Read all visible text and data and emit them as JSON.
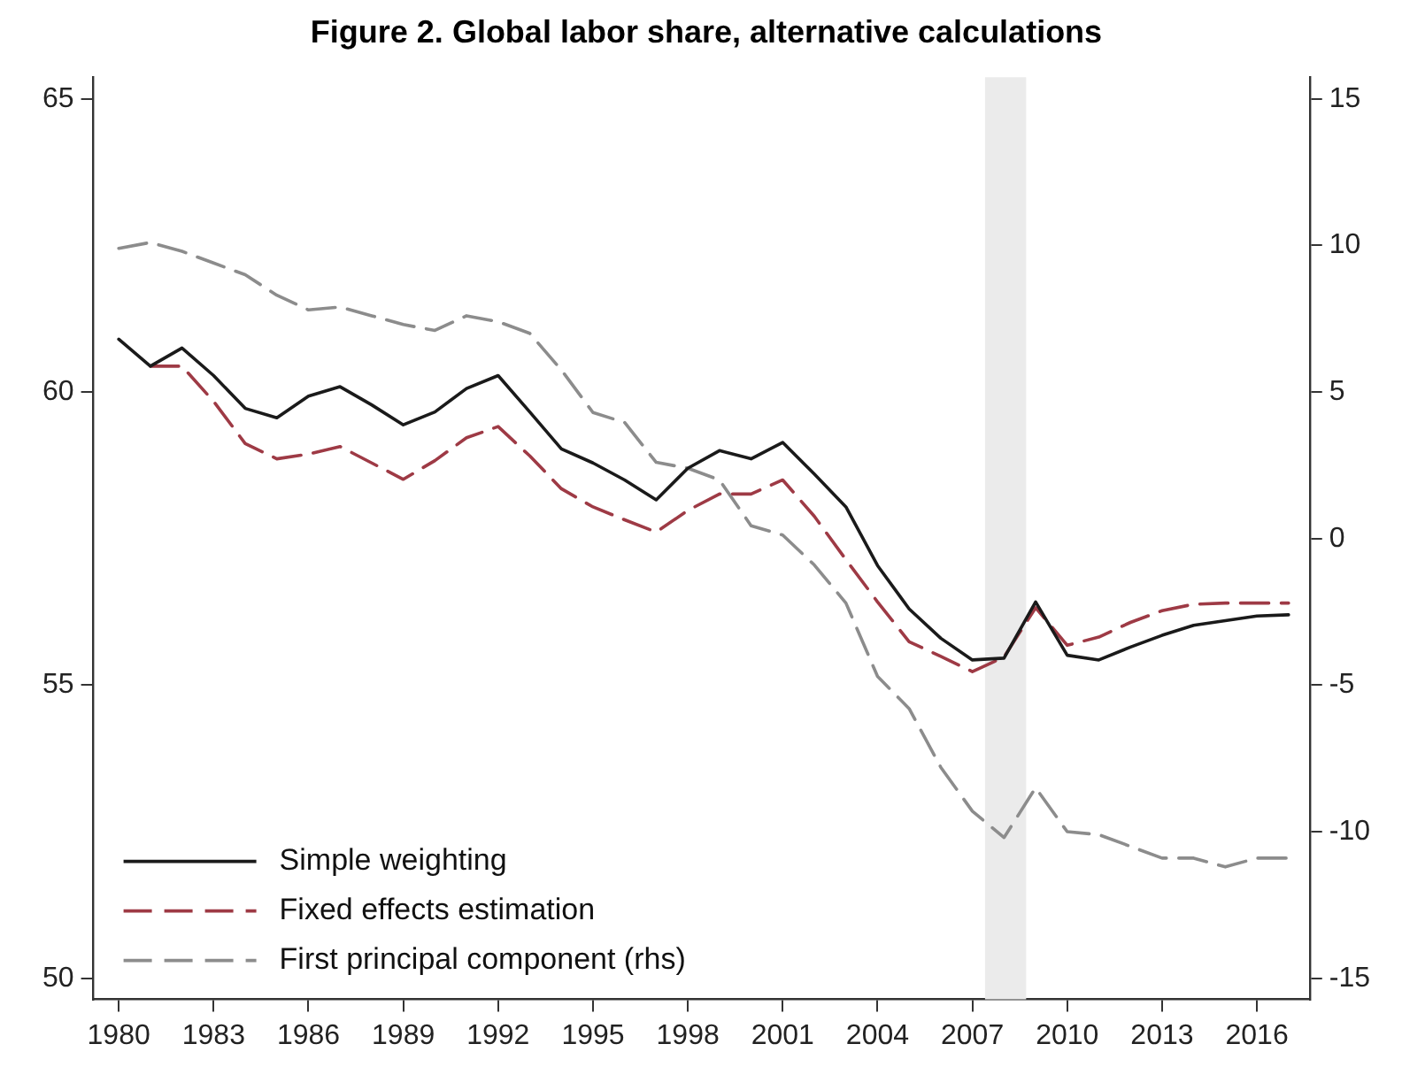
{
  "chart_data": {
    "type": "line",
    "title": "Figure 2. Global labor share, alternative calculations",
    "x": [
      1980,
      1981,
      1982,
      1983,
      1984,
      1985,
      1986,
      1987,
      1988,
      1989,
      1990,
      1991,
      1992,
      1993,
      1994,
      1995,
      1996,
      1997,
      1998,
      1999,
      2000,
      2001,
      2002,
      2003,
      2004,
      2005,
      2006,
      2007,
      2008,
      2009,
      2010,
      2011,
      2012,
      2013,
      2014,
      2015,
      2016,
      2017
    ],
    "series": [
      {
        "name": "Simple weighting",
        "color": "#1a1a1a",
        "line_style": "solid",
        "values": [
          60.9,
          60.44,
          60.75,
          60.28,
          59.72,
          59.56,
          59.93,
          60.09,
          59.78,
          59.44,
          59.66,
          60.06,
          60.28,
          59.66,
          59.03,
          58.79,
          58.5,
          58.16,
          58.7,
          59.0,
          58.86,
          59.14,
          58.6,
          58.04,
          57.04,
          56.3,
          55.8,
          55.43,
          55.46,
          56.42,
          55.51,
          55.43,
          55.65,
          55.85,
          56.02,
          56.1,
          56.18,
          56.2
        ]
      },
      {
        "name": "Fixed effects estimation",
        "color": "#9e3a45",
        "line_style": "dashed",
        "values": [
          null,
          60.44,
          60.44,
          59.84,
          59.12,
          58.86,
          58.94,
          59.07,
          58.79,
          58.51,
          58.83,
          59.22,
          59.41,
          58.91,
          58.35,
          58.04,
          57.82,
          57.61,
          57.98,
          58.26,
          58.26,
          58.5,
          57.88,
          57.14,
          56.42,
          55.74,
          55.49,
          55.23,
          55.48,
          56.32,
          55.68,
          55.82,
          56.07,
          56.27,
          56.38,
          56.4,
          56.4,
          56.4
        ]
      },
      {
        "name": "First principal component (rhs)",
        "color": "#8c8c8c",
        "line_style": "dashed",
        "axis": "y2",
        "values": [
          9.9,
          10.1,
          9.8,
          9.4,
          9.0,
          8.3,
          7.8,
          7.9,
          7.6,
          7.3,
          7.1,
          7.6,
          7.4,
          7.0,
          5.75,
          4.3,
          3.96,
          2.6,
          2.4,
          2.0,
          0.44,
          0.12,
          -0.9,
          -2.2,
          -4.7,
          -5.8,
          -7.8,
          -9.3,
          -10.2,
          -8.5,
          -10.0,
          -10.1,
          -10.5,
          -10.9,
          -10.9,
          -11.2,
          -10.9,
          -10.9
        ]
      }
    ],
    "xlim": [
      1979.2,
      2017.67
    ],
    "xticks": [
      1980,
      1983,
      1986,
      1989,
      1992,
      1995,
      1998,
      2001,
      2004,
      2007,
      2010,
      2013,
      2016
    ],
    "ylim": [
      49.64,
      65.37
    ],
    "yticks": [
      50,
      55,
      60,
      65
    ],
    "y2lim": [
      -15.72,
      15.74
    ],
    "y2ticks": [
      -15,
      -10,
      -5,
      0,
      5,
      10,
      15
    ],
    "bands": [
      {
        "axis": "x",
        "from": 2007.4,
        "to": 2008.7,
        "color": "#ebebeb"
      }
    ],
    "legend": "bottom left",
    "grid": false,
    "marker": "none"
  }
}
